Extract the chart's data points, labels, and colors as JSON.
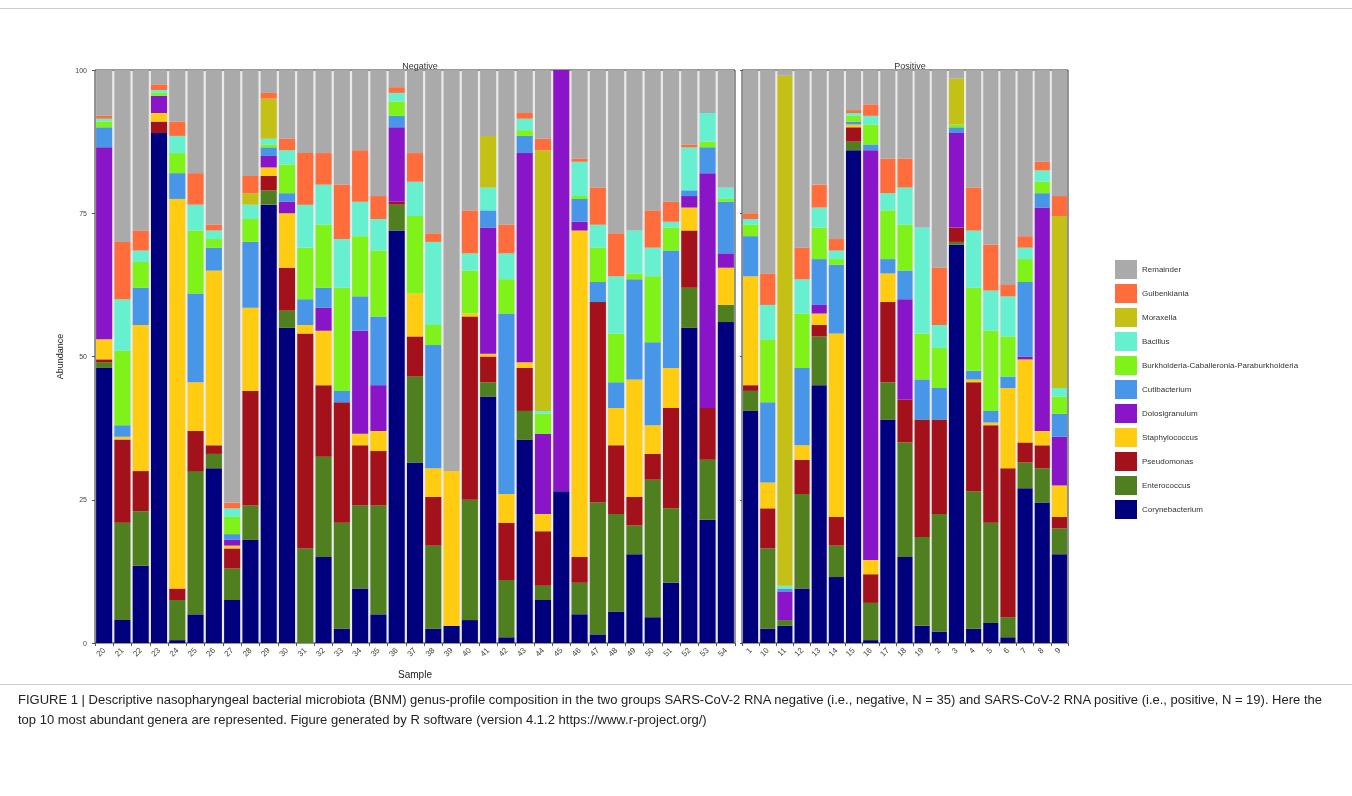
{
  "chart_data": [
    {
      "type": "bar",
      "stacked": true,
      "title": "Negative",
      "xlabel": "Sample",
      "ylabel": "Abundance",
      "ylim": [
        0,
        100
      ],
      "yticks": [
        0,
        25,
        50,
        75,
        100
      ],
      "annotations": [
        "FIGURE 1 | Descriptive nasopharyngeal bacterial microbiota (BNM) genus-profile composition in the two groups SARS-CoV-2 RNA negative (i.e., negative, N = 35) and SARS-CoV-2 RNA positive (i.e., positive, N = 19). Here the top 10 most abundant genera are represented. Figure generated by R software (version 4.1.2 https://www.r-project.org/)"
      ],
      "categories": [
        "20",
        "21",
        "22",
        "23",
        "24",
        "25",
        "26",
        "27",
        "28",
        "29",
        "30",
        "31",
        "32",
        "33",
        "34",
        "35",
        "36",
        "37",
        "38",
        "39",
        "40",
        "41",
        "42",
        "43",
        "44",
        "45",
        "46",
        "47",
        "48",
        "49",
        "50",
        "51",
        "52",
        "53",
        "54"
      ],
      "series": [
        {
          "color": "#00007f",
          "values": [
            48,
            4,
            13.5,
            89,
            0.5,
            5,
            30.5,
            7.5,
            18,
            76.5,
            55,
            null,
            15,
            2.5,
            9.5,
            5,
            72,
            31.5,
            2.5,
            3,
            4,
            43,
            1,
            35.5,
            7.5,
            26.5,
            5,
            1.5,
            5.5,
            15.5,
            4.5,
            10.5,
            55,
            21.5,
            56
          ]
        },
        {
          "color": "#4f7f1f",
          "values": [
            1,
            17,
            9.5,
            null,
            7,
            25,
            2.5,
            5.5,
            6,
            2.5,
            3,
            16.5,
            17.5,
            18.5,
            14.5,
            19,
            4.5,
            15,
            14.5,
            null,
            21,
            2.5,
            10,
            5,
            2.5,
            null,
            5.5,
            23,
            17,
            5,
            24,
            13,
            7,
            10.5,
            3
          ]
        },
        {
          "color": "#a3121a",
          "values": [
            0.5,
            14.5,
            7,
            2,
            2,
            7,
            1.5,
            3.5,
            20,
            2.5,
            7.5,
            37.5,
            12.5,
            21,
            10.5,
            9.5,
            0.5,
            7,
            8.5,
            null,
            32,
            4.5,
            10,
            7.5,
            9.5,
            null,
            4.5,
            35,
            12,
            5,
            4.5,
            17.5,
            10,
            9,
            null
          ]
        },
        {
          "color": "#ffcc11",
          "values": [
            3.5,
            0.5,
            25.5,
            1.5,
            68,
            8.5,
            30.5,
            0.5,
            14.5,
            1.5,
            9.5,
            1.5,
            9.5,
            null,
            2,
            3.5,
            null,
            7.5,
            5,
            27,
            0.5,
            0.5,
            5,
            1,
            3,
            null,
            57,
            null,
            6.5,
            20.5,
            5,
            7,
            4,
            null,
            6.5
          ]
        },
        {
          "color": "#8a14c8",
          "values": [
            33.5,
            null,
            null,
            3,
            null,
            null,
            null,
            1,
            null,
            2,
            2,
            null,
            4,
            null,
            18,
            8,
            13,
            null,
            null,
            null,
            null,
            22,
            null,
            36.5,
            14,
            73.5,
            1.5,
            null,
            null,
            null,
            null,
            null,
            2,
            41,
            2.5
          ]
        },
        {
          "color": "#4896e8",
          "values": [
            3.5,
            2,
            6.5,
            null,
            4.5,
            15.5,
            4,
            1,
            11.5,
            1.5,
            1.5,
            4.5,
            3.5,
            2,
            6,
            12,
            2,
            null,
            21.5,
            null,
            null,
            3,
            31.5,
            3,
            null,
            null,
            4,
            3.5,
            4.5,
            17.5,
            14.5,
            20.5,
            1,
            4.5,
            9
          ]
        },
        {
          "color": "#7ff21a",
          "values": [
            1,
            13,
            4.5,
            0.5,
            3.5,
            11,
            1.5,
            3,
            4,
            0.5,
            5,
            9,
            11,
            18,
            10.5,
            11.5,
            2.5,
            13.5,
            3.5,
            null,
            7.5,
            null,
            6,
            1,
            3.5,
            null,
            0.5,
            6,
            8.5,
            1,
            11.5,
            4,
            null,
            1,
            0.5
          ]
        },
        {
          "color": "#66f0d0",
          "values": [
            0.5,
            9,
            2,
            0.5,
            3,
            4.5,
            1.5,
            1.5,
            2.5,
            1,
            2.5,
            7.5,
            7,
            8.5,
            6,
            5.5,
            1.5,
            6,
            14.5,
            null,
            3,
            4,
            4.5,
            2,
            0.5,
            null,
            6,
            4,
            10,
            7.5,
            5,
            1,
            7.5,
            5,
            2
          ]
        },
        {
          "color": "#c4c015",
          "values": [
            null,
            null,
            null,
            null,
            null,
            null,
            null,
            null,
            2,
            7,
            null,
            null,
            null,
            null,
            null,
            null,
            null,
            null,
            null,
            null,
            null,
            9,
            null,
            null,
            45.5,
            null,
            null,
            null,
            null,
            null,
            null,
            null,
            null,
            null,
            null
          ]
        },
        {
          "color": "#ff6d3d",
          "values": [
            0.5,
            10,
            3.5,
            1,
            2.5,
            5.5,
            1,
            1,
            3,
            1,
            2,
            9,
            5.5,
            9.5,
            9,
            4,
            1,
            5,
            1.5,
            null,
            7.5,
            null,
            5,
            1,
            2,
            null,
            0.5,
            6.5,
            7.5,
            null,
            6.5,
            3.5,
            0.5,
            null,
            null
          ]
        },
        {
          "color": "#aaaaaa",
          "values": [
            8,
            30,
            28,
            2.5,
            9,
            18,
            27,
            75.5,
            18.5,
            4,
            12,
            14.5,
            14.5,
            20,
            14,
            22,
            3,
            14.5,
            28.5,
            70,
            24.5,
            11.5,
            27,
            7.5,
            12,
            null,
            15.5,
            20.5,
            28.5,
            28,
            24.5,
            23,
            13,
            7.5,
            20.5
          ]
        }
      ]
    },
    {
      "type": "bar",
      "stacked": true,
      "title": "Positive",
      "ylim": [
        0,
        100
      ],
      "yticks": [
        0,
        25,
        50,
        75,
        100
      ],
      "tick_labels": "x",
      "legend": "right",
      "categories": [
        "1",
        "10",
        "11",
        "12",
        "13",
        "14",
        "15",
        "16",
        "17",
        "18",
        "19",
        "2",
        "3",
        "4",
        "5",
        "6",
        "7",
        "8",
        "9"
      ],
      "series": [
        {
          "name": "Corynebacterium",
          "color": "#00007f",
          "values": [
            40.5,
            2.5,
            3,
            9.5,
            45,
            11.5,
            86,
            0.5,
            39,
            15,
            3,
            2,
            69.5,
            2.5,
            3.5,
            1,
            27,
            24.5,
            15.5
          ]
        },
        {
          "name": "Enterococcus",
          "color": "#4f7f1f",
          "values": [
            3.5,
            14,
            1,
            16.5,
            8.5,
            5.5,
            1.5,
            6.5,
            6.5,
            20,
            15.5,
            20.5,
            0.5,
            24,
            17.5,
            3.5,
            4.5,
            6,
            4.5
          ]
        },
        {
          "name": "Pseudomonas",
          "color": "#a3121a",
          "values": [
            1,
            7,
            null,
            6,
            2,
            5,
            2.5,
            5,
            14,
            7.5,
            20.5,
            16.5,
            2.5,
            19,
            17,
            26,
            3.5,
            4,
            2
          ]
        },
        {
          "name": "Staphylococcus",
          "color": "#ffcc11",
          "values": [
            19,
            4.5,
            null,
            2.5,
            2,
            32,
            0.5,
            2.5,
            5,
            null,
            null,
            null,
            null,
            0.5,
            0.5,
            14,
            14.5,
            2.5,
            5.5
          ]
        },
        {
          "name": "Dolosigranulum",
          "color": "#8a14c8",
          "values": [
            null,
            null,
            5,
            null,
            1.5,
            null,
            null,
            71.5,
            null,
            17.5,
            null,
            null,
            16.5,
            null,
            null,
            null,
            0.5,
            39,
            8.5
          ]
        },
        {
          "name": "Cutibacterium",
          "color": "#4896e8",
          "values": [
            7,
            14,
            0.5,
            13.5,
            8,
            12,
            0.5,
            1,
            2.5,
            5,
            7,
            5.5,
            1,
            1.5,
            2,
            2,
            13,
            2.5,
            4
          ]
        },
        {
          "name": "Burkholderia-Caballeronia-Paraburkholderia",
          "color": "#7ff21a",
          "values": [
            2,
            11,
            null,
            9.5,
            5.5,
            1,
            1,
            3.5,
            8.5,
            8,
            8,
            7,
            0.5,
            14.5,
            14,
            7,
            4,
            2,
            3
          ]
        },
        {
          "name": "Bacillus",
          "color": "#66f0d0",
          "values": [
            1,
            6,
            0.5,
            6,
            3.5,
            1.5,
            0.5,
            1.5,
            3,
            6.5,
            18.5,
            4,
            null,
            10,
            7,
            7,
            2,
            2,
            1.5
          ]
        },
        {
          "name": "Moraxella",
          "color": "#c4c015",
          "values": [
            null,
            null,
            89,
            null,
            null,
            null,
            null,
            null,
            null,
            null,
            null,
            null,
            8,
            null,
            null,
            null,
            null,
            null,
            30
          ]
        },
        {
          "name": "Gulbenkiania",
          "color": "#ff6d3d",
          "values": [
            1,
            5.5,
            null,
            5.5,
            4,
            2,
            0.5,
            2,
            6,
            5,
            null,
            10,
            null,
            7.5,
            8,
            2,
            2,
            1.5,
            3.5
          ]
        },
        {
          "name": "Remainder",
          "color": "#aaaaaa",
          "values": [
            25,
            35.5,
            1,
            31,
            20,
            29.5,
            7,
            6,
            15.5,
            15.5,
            27.5,
            34.5,
            1.5,
            20.5,
            30.5,
            37.5,
            29,
            16,
            22
          ]
        }
      ]
    }
  ]
}
